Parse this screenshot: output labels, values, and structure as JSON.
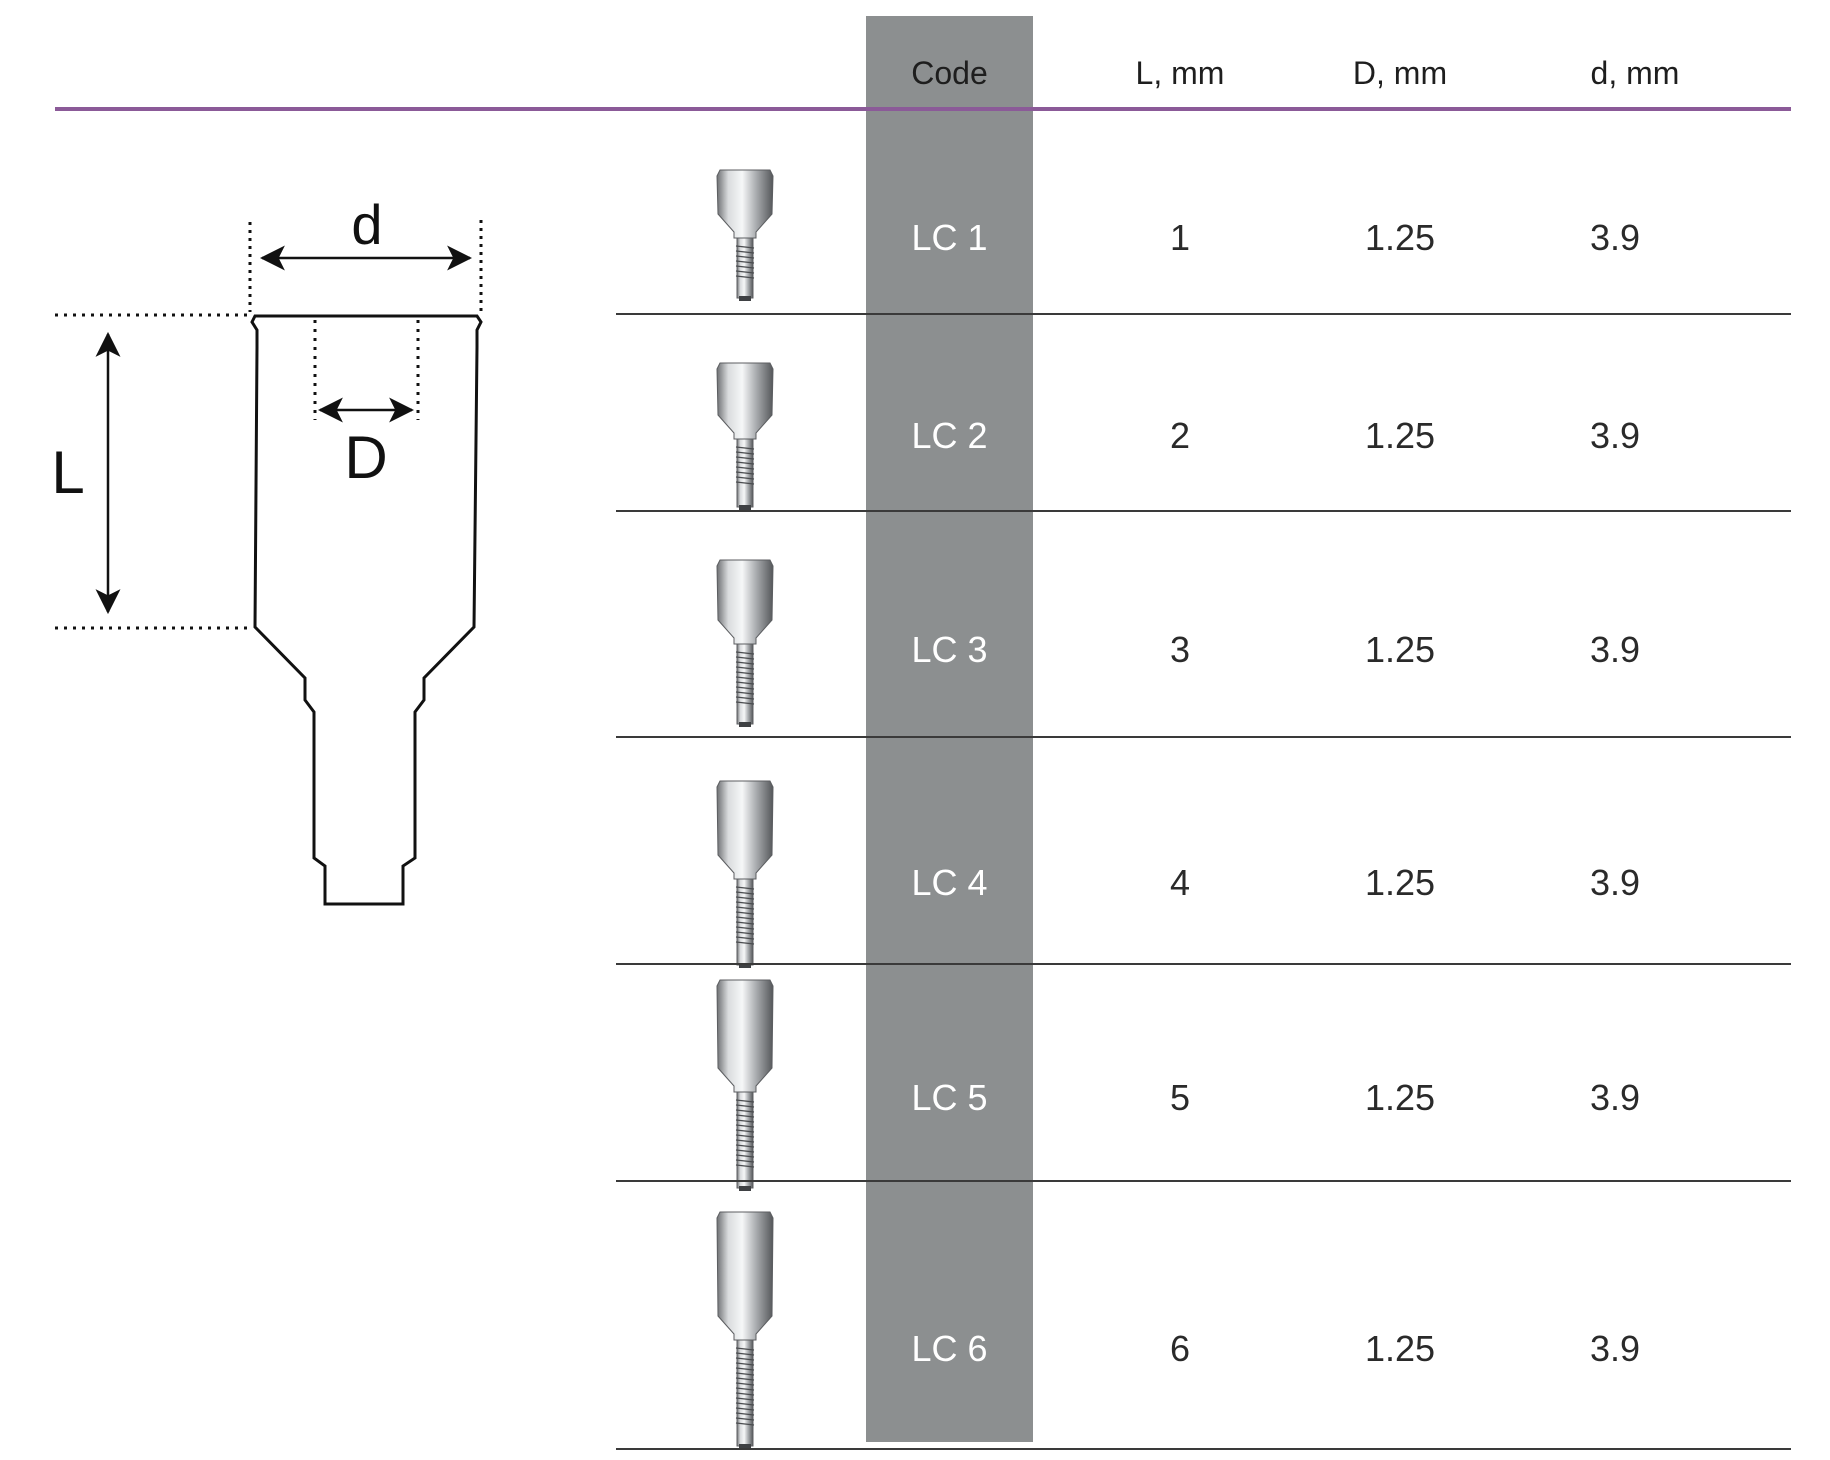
{
  "headers": {
    "code": "Code",
    "length": "L, mm",
    "hole_diameter": "D, mm",
    "outer_diameter": "d, mm"
  },
  "diagram": {
    "label_d": "d",
    "label_D": "D",
    "label_L": "L"
  },
  "rows": [
    {
      "code": "LC 1",
      "L": "1",
      "D": "1.25",
      "d": "3.9",
      "icon": "lab-component-lc1-icon"
    },
    {
      "code": "LC 2",
      "L": "2",
      "D": "1.25",
      "d": "3.9",
      "icon": "lab-component-lc2-icon"
    },
    {
      "code": "LC 3",
      "L": "3",
      "D": "1.25",
      "d": "3.9",
      "icon": "lab-component-lc3-icon"
    },
    {
      "code": "LC 4",
      "L": "4",
      "D": "1.25",
      "d": "3.9",
      "icon": "lab-component-lc4-icon"
    },
    {
      "code": "LC 5",
      "L": "5",
      "D": "1.25",
      "d": "3.9",
      "icon": "lab-component-lc5-icon"
    },
    {
      "code": "LC 6",
      "L": "6",
      "D": "1.25",
      "d": "3.9",
      "icon": "lab-component-lc6-icon"
    }
  ],
  "colors": {
    "code_column": "#8c8f90",
    "header_rule": "#8b5a98"
  }
}
